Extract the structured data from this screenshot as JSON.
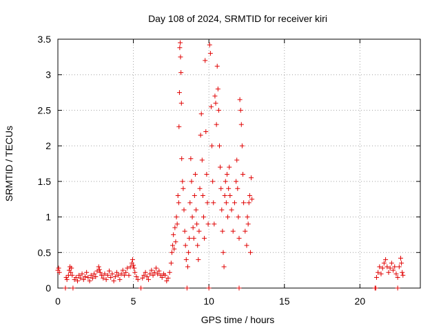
{
  "chart_data": {
    "type": "scatter",
    "title": "Day 108 of 2024, SRMTID for receiver kiri",
    "xlabel": "GPS time / hours",
    "ylabel": "SRMTID / TECUs",
    "xlim": [
      0,
      24
    ],
    "ylim": [
      0,
      3.5
    ],
    "xticks": [
      "0",
      "5",
      "10",
      "15",
      "20"
    ],
    "yticks": [
      "0",
      "0.5",
      "1",
      "1.5",
      "2",
      "2.5",
      "3",
      "3.5"
    ],
    "grid": true,
    "marker": "plus",
    "color": "#e00000",
    "series": [
      {
        "name": "SRMTID",
        "points": [
          [
            0.0,
            0.25
          ],
          [
            0.05,
            0.28
          ],
          [
            0.1,
            0.22
          ],
          [
            0.5,
            0.0
          ],
          [
            0.55,
            0.15
          ],
          [
            0.6,
            0.12
          ],
          [
            0.7,
            0.18
          ],
          [
            0.75,
            0.25
          ],
          [
            0.8,
            0.3
          ],
          [
            0.85,
            0.22
          ],
          [
            0.9,
            0.28
          ],
          [
            0.95,
            0.18
          ],
          [
            1.0,
            0.0
          ],
          [
            1.1,
            0.12
          ],
          [
            1.2,
            0.15
          ],
          [
            1.3,
            0.1
          ],
          [
            1.4,
            0.18
          ],
          [
            1.5,
            0.14
          ],
          [
            1.6,
            0.2
          ],
          [
            1.7,
            0.12
          ],
          [
            1.8,
            0.16
          ],
          [
            1.9,
            0.22
          ],
          [
            2.0,
            0.15
          ],
          [
            2.1,
            0.1
          ],
          [
            2.2,
            0.18
          ],
          [
            2.3,
            0.14
          ],
          [
            2.4,
            0.2
          ],
          [
            2.5,
            0.16
          ],
          [
            2.6,
            0.24
          ],
          [
            2.7,
            0.3
          ],
          [
            2.75,
            0.26
          ],
          [
            2.8,
            0.22
          ],
          [
            2.9,
            0.18
          ],
          [
            3.0,
            0.14
          ],
          [
            3.1,
            0.2
          ],
          [
            3.2,
            0.12
          ],
          [
            3.3,
            0.18
          ],
          [
            3.4,
            0.24
          ],
          [
            3.5,
            0.15
          ],
          [
            3.6,
            0.2
          ],
          [
            3.7,
            0.1
          ],
          [
            3.8,
            0.16
          ],
          [
            3.9,
            0.22
          ],
          [
            4.0,
            0.18
          ],
          [
            4.1,
            0.12
          ],
          [
            4.2,
            0.2
          ],
          [
            4.3,
            0.25
          ],
          [
            4.4,
            0.18
          ],
          [
            4.5,
            0.22
          ],
          [
            4.6,
            0.28
          ],
          [
            4.7,
            0.18
          ],
          [
            4.8,
            0.3
          ],
          [
            4.9,
            0.35
          ],
          [
            4.95,
            0.4
          ],
          [
            5.0,
            0.32
          ],
          [
            5.05,
            0.28
          ],
          [
            5.1,
            0.22
          ],
          [
            5.2,
            0.16
          ],
          [
            5.3,
            0.12
          ],
          [
            5.5,
            0.0
          ],
          [
            5.6,
            0.14
          ],
          [
            5.7,
            0.18
          ],
          [
            5.8,
            0.22
          ],
          [
            5.9,
            0.16
          ],
          [
            6.0,
            0.12
          ],
          [
            6.1,
            0.2
          ],
          [
            6.2,
            0.25
          ],
          [
            6.3,
            0.18
          ],
          [
            6.4,
            0.22
          ],
          [
            6.5,
            0.28
          ],
          [
            6.6,
            0.2
          ],
          [
            6.7,
            0.24
          ],
          [
            6.8,
            0.18
          ],
          [
            6.9,
            0.15
          ],
          [
            7.0,
            0.2
          ],
          [
            7.1,
            0.18
          ],
          [
            7.2,
            0.1
          ],
          [
            7.3,
            0.14
          ],
          [
            7.4,
            0.22
          ],
          [
            7.5,
            0.35
          ],
          [
            7.55,
            0.5
          ],
          [
            7.6,
            0.6
          ],
          [
            7.65,
            0.75
          ],
          [
            7.7,
            0.55
          ],
          [
            7.75,
            0.85
          ],
          [
            7.8,
            0.65
          ],
          [
            7.85,
            1.0
          ],
          [
            7.9,
            0.9
          ],
          [
            7.95,
            1.3
          ],
          [
            8.0,
            1.2
          ],
          [
            8.02,
            2.27
          ],
          [
            8.05,
            2.75
          ],
          [
            8.07,
            3.38
          ],
          [
            8.1,
            3.45
          ],
          [
            8.12,
            3.25
          ],
          [
            8.15,
            3.03
          ],
          [
            8.18,
            2.6
          ],
          [
            8.2,
            1.82
          ],
          [
            8.25,
            1.5
          ],
          [
            8.3,
            1.4
          ],
          [
            8.35,
            1.1
          ],
          [
            8.4,
            0.8
          ],
          [
            8.45,
            0.6
          ],
          [
            8.5,
            0.4
          ],
          [
            8.55,
            0.0
          ],
          [
            8.6,
            0.3
          ],
          [
            8.65,
            0.5
          ],
          [
            8.7,
            0.7
          ],
          [
            8.75,
            1.2
          ],
          [
            8.8,
            1.82
          ],
          [
            8.85,
            1.5
          ],
          [
            8.9,
            1.0
          ],
          [
            8.95,
            0.85
          ],
          [
            9.0,
            0.7
          ],
          [
            9.05,
            1.3
          ],
          [
            9.1,
            1.6
          ],
          [
            9.15,
            1.1
          ],
          [
            9.2,
            0.9
          ],
          [
            9.25,
            0.6
          ],
          [
            9.3,
            0.4
          ],
          [
            9.35,
            0.8
          ],
          [
            9.4,
            1.4
          ],
          [
            9.45,
            2.15
          ],
          [
            9.5,
            2.45
          ],
          [
            9.55,
            1.8
          ],
          [
            9.6,
            1.3
          ],
          [
            9.65,
            1.0
          ],
          [
            9.7,
            0.7
          ],
          [
            9.75,
            3.2
          ],
          [
            9.8,
            2.2
          ],
          [
            9.85,
            1.6
          ],
          [
            9.9,
            1.2
          ],
          [
            9.95,
            0.9
          ],
          [
            10.0,
            0.0
          ],
          [
            10.05,
            3.42
          ],
          [
            10.1,
            3.3
          ],
          [
            10.15,
            2.55
          ],
          [
            10.2,
            2.0
          ],
          [
            10.25,
            1.5
          ],
          [
            10.3,
            1.2
          ],
          [
            10.35,
            0.9
          ],
          [
            10.4,
            2.7
          ],
          [
            10.45,
            2.6
          ],
          [
            10.5,
            2.3
          ],
          [
            10.55,
            3.12
          ],
          [
            10.6,
            2.8
          ],
          [
            10.65,
            2.5
          ],
          [
            10.7,
            2.0
          ],
          [
            10.75,
            1.7
          ],
          [
            10.8,
            1.4
          ],
          [
            10.85,
            1.1
          ],
          [
            10.9,
            0.8
          ],
          [
            10.95,
            0.5
          ],
          [
            11.0,
            0.3
          ],
          [
            11.05,
            1.3
          ],
          [
            11.1,
            1.5
          ],
          [
            11.15,
            1.2
          ],
          [
            11.2,
            1.6
          ],
          [
            11.25,
            1.0
          ],
          [
            11.3,
            1.4
          ],
          [
            11.35,
            1.7
          ],
          [
            11.4,
            1.3
          ],
          [
            11.5,
            1.1
          ],
          [
            11.6,
            0.8
          ],
          [
            11.7,
            1.2
          ],
          [
            11.8,
            1.5
          ],
          [
            11.85,
            1.8
          ],
          [
            11.9,
            1.4
          ],
          [
            11.95,
            1.0
          ],
          [
            12.0,
            0.7
          ],
          [
            12.05,
            2.65
          ],
          [
            12.1,
            2.5
          ],
          [
            12.15,
            2.3
          ],
          [
            12.2,
            2.0
          ],
          [
            12.25,
            1.6
          ],
          [
            12.3,
            1.2
          ],
          [
            12.4,
            0.8
          ],
          [
            12.5,
            0.6
          ],
          [
            12.55,
            1.0
          ],
          [
            12.6,
            0.9
          ],
          [
            12.65,
            1.2
          ],
          [
            12.7,
            1.3
          ],
          [
            12.75,
            0.5
          ],
          [
            12.8,
            1.55
          ],
          [
            12.85,
            1.25
          ],
          [
            12.0,
            0.0
          ],
          [
            21.0,
            0.0
          ],
          [
            21.1,
            0.15
          ],
          [
            21.2,
            0.22
          ],
          [
            21.3,
            0.3
          ],
          [
            21.4,
            0.2
          ],
          [
            21.5,
            0.28
          ],
          [
            21.6,
            0.35
          ],
          [
            21.7,
            0.4
          ],
          [
            21.8,
            0.3
          ],
          [
            21.9,
            0.22
          ],
          [
            22.0,
            0.28
          ],
          [
            22.1,
            0.35
          ],
          [
            22.2,
            0.25
          ],
          [
            22.3,
            0.3
          ],
          [
            22.4,
            0.2
          ],
          [
            22.5,
            0.15
          ],
          [
            22.6,
            0.3
          ],
          [
            22.7,
            0.42
          ],
          [
            22.75,
            0.35
          ],
          [
            22.8,
            0.22
          ],
          [
            22.85,
            0.18
          ],
          [
            22.5,
            0.0
          ],
          [
            21.05,
            0.0
          ]
        ]
      }
    ]
  }
}
